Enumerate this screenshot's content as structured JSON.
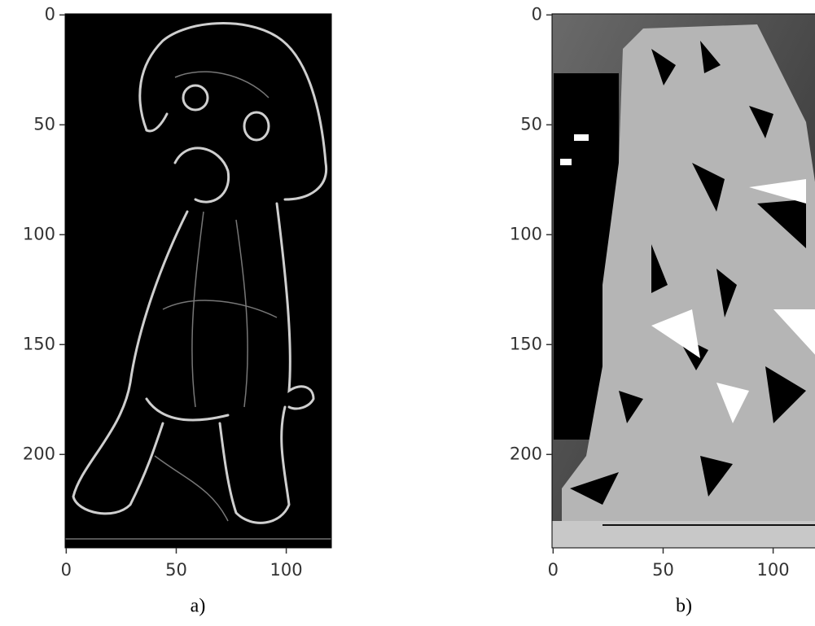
{
  "chart_data": [
    {
      "type": "image",
      "caption": "a)",
      "xlim": [
        -0.5,
        120.5
      ],
      "ylim": [
        242.5,
        -0.5
      ],
      "xticks": [
        0,
        50,
        100
      ],
      "yticks": [
        0,
        50,
        100,
        150,
        200
      ]
    },
    {
      "type": "image",
      "caption": "b)",
      "xlim": [
        -0.5,
        120.5
      ],
      "ylim": [
        242.5,
        -0.5
      ],
      "xticks": [
        0,
        50,
        100
      ],
      "yticks": [
        0,
        50,
        100,
        150,
        200
      ]
    }
  ]
}
